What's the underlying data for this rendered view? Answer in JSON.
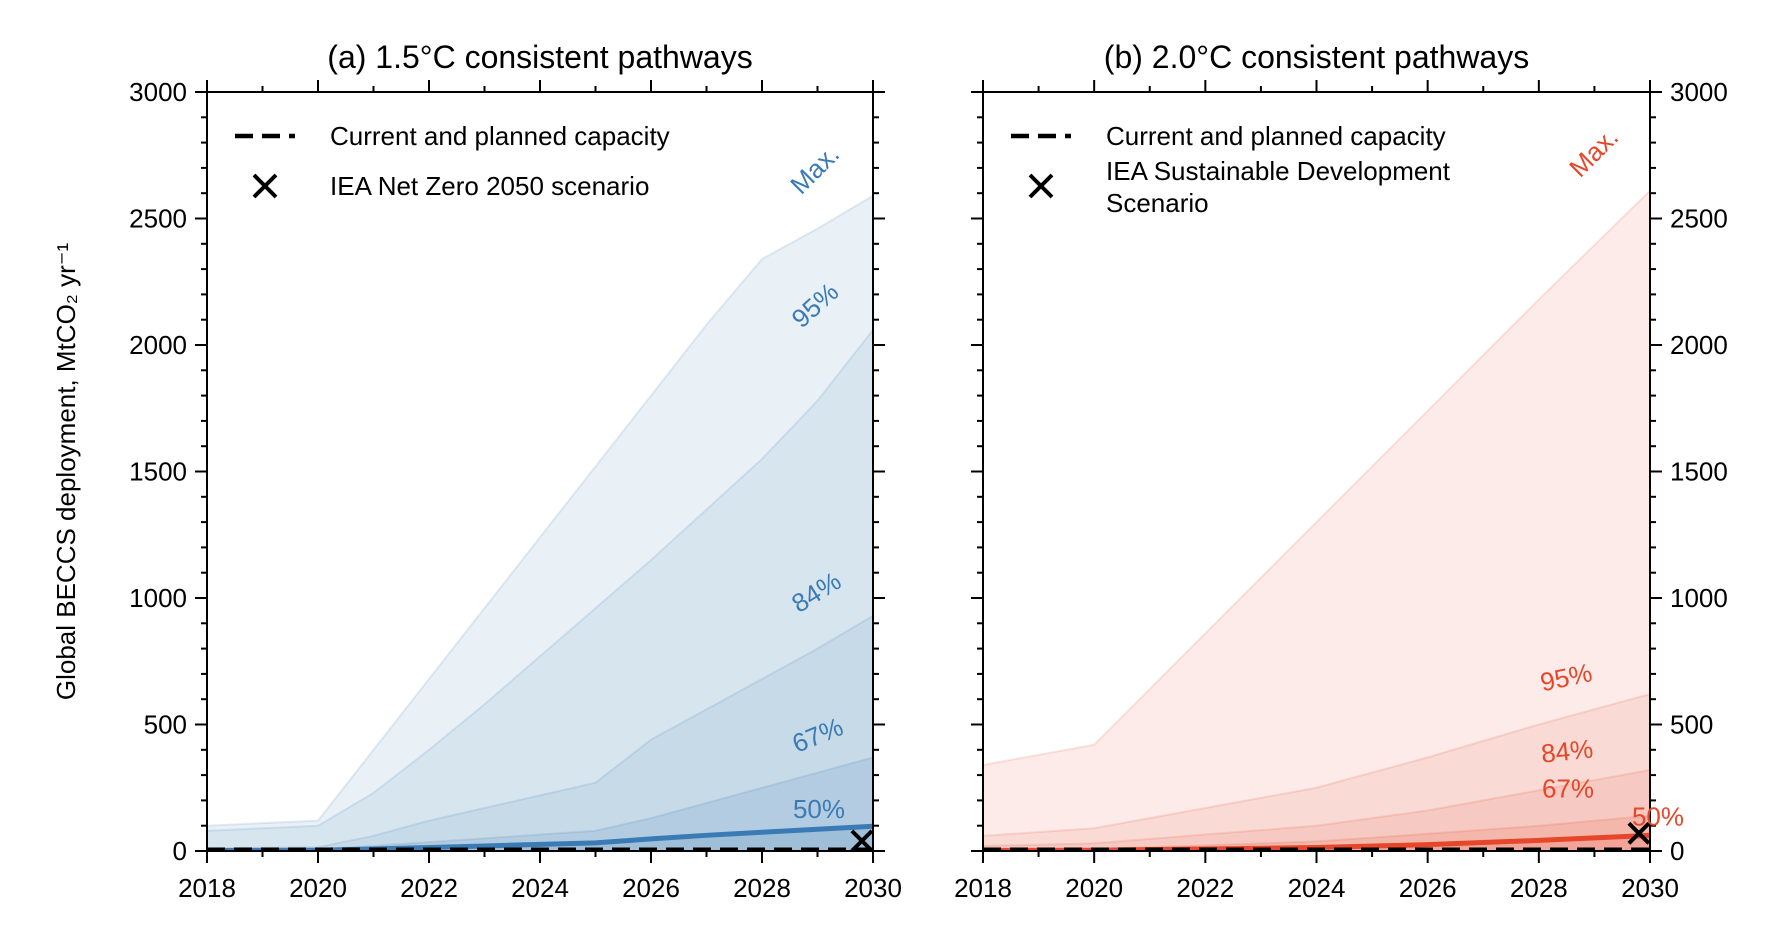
{
  "chart_data": [
    {
      "type": "area",
      "title": "(a) 1.5°C consistent pathways",
      "ylabel": "Global BECCS deployment, MtCO₂ yr⁻¹",
      "xlabel": "",
      "xlim": [
        2018,
        2030
      ],
      "ylim": [
        0,
        3000
      ],
      "xticks": [
        "2018",
        "2020",
        "2022",
        "2024",
        "2026",
        "2028",
        "2030"
      ],
      "yticks": [
        "0",
        "500",
        "1000",
        "1500",
        "2000",
        "2500",
        "3000"
      ],
      "y_axis_side": "left",
      "color": "#3b7bb5",
      "legend": {
        "placement": "upper-left",
        "entries": [
          {
            "label": "Current and planned capacity",
            "marker": "dashed-line"
          },
          {
            "label": "IEA Net Zero 2050 scenario",
            "marker": "x"
          }
        ]
      },
      "series": [
        {
          "name": "Max.",
          "x": [
            2018,
            2020,
            2021,
            2022,
            2023,
            2024,
            2025,
            2026,
            2027,
            2028,
            2029,
            2030
          ],
          "values": [
            100,
            120,
            400,
            680,
            960,
            1240,
            1520,
            1800,
            2080,
            2340,
            2460,
            2590
          ]
        },
        {
          "name": "95%",
          "x": [
            2018,
            2020,
            2021,
            2022,
            2023,
            2024,
            2025,
            2026,
            2027,
            2028,
            2029,
            2030
          ],
          "values": [
            80,
            100,
            230,
            400,
            580,
            770,
            960,
            1150,
            1350,
            1550,
            1780,
            2060
          ]
        },
        {
          "name": "84%",
          "x": [
            2018,
            2020,
            2021,
            2022,
            2023,
            2024,
            2025,
            2026,
            2027,
            2028,
            2029,
            2030
          ],
          "values": [
            10,
            15,
            60,
            120,
            170,
            220,
            270,
            440,
            560,
            680,
            800,
            930
          ]
        },
        {
          "name": "67%",
          "x": [
            2018,
            2020,
            2021,
            2022,
            2023,
            2024,
            2025,
            2026,
            2027,
            2028,
            2029,
            2030
          ],
          "values": [
            5,
            8,
            20,
            35,
            50,
            65,
            80,
            130,
            190,
            250,
            310,
            370
          ]
        },
        {
          "name": "50%",
          "x": [
            2018,
            2020,
            2021,
            2022,
            2023,
            2024,
            2025,
            2026,
            2027,
            2028,
            2029,
            2030
          ],
          "values": [
            2,
            3,
            8,
            14,
            20,
            26,
            32,
            48,
            62,
            74,
            86,
            98
          ]
        }
      ],
      "current_capacity": {
        "x": [
          2018,
          2030
        ],
        "values": [
          5,
          5
        ]
      },
      "scenario_point": {
        "x": 2029.8,
        "y": 40
      }
    },
    {
      "type": "area",
      "title": "(b) 2.0°C consistent pathways",
      "ylabel": "",
      "xlabel": "",
      "xlim": [
        2018,
        2030
      ],
      "ylim": [
        0,
        3000
      ],
      "xticks": [
        "2018",
        "2020",
        "2022",
        "2024",
        "2026",
        "2028",
        "2030"
      ],
      "yticks": [
        "0",
        "500",
        "1000",
        "1500",
        "2000",
        "2500",
        "3000"
      ],
      "y_axis_side": "right",
      "color": "#e6472a",
      "legend": {
        "placement": "upper-left",
        "entries": [
          {
            "label": "Current and planned capacity",
            "marker": "dashed-line"
          },
          {
            "label": "IEA Sustainable Development",
            "label2": "Scenario",
            "marker": "x"
          }
        ]
      },
      "series": [
        {
          "name": "Max.",
          "x": [
            2018,
            2020,
            2022,
            2024,
            2026,
            2028,
            2030
          ],
          "values": [
            340,
            420,
            860,
            1300,
            1740,
            2180,
            2610
          ]
        },
        {
          "name": "95%",
          "x": [
            2018,
            2020,
            2022,
            2024,
            2026,
            2028,
            2030
          ],
          "values": [
            60,
            90,
            170,
            250,
            370,
            500,
            620
          ]
        },
        {
          "name": "84%",
          "x": [
            2018,
            2020,
            2022,
            2024,
            2026,
            2028,
            2030
          ],
          "values": [
            20,
            30,
            65,
            100,
            160,
            240,
            320
          ]
        },
        {
          "name": "67%",
          "x": [
            2018,
            2020,
            2022,
            2024,
            2026,
            2028,
            2030
          ],
          "values": [
            5,
            8,
            22,
            38,
            68,
            100,
            140
          ]
        },
        {
          "name": "50%",
          "x": [
            2018,
            2020,
            2022,
            2024,
            2026,
            2028,
            2030
          ],
          "values": [
            2,
            3,
            8,
            14,
            25,
            42,
            62
          ]
        }
      ],
      "current_capacity": {
        "x": [
          2018,
          2030
        ],
        "values": [
          5,
          5
        ]
      },
      "scenario_point": {
        "x": 2029.8,
        "y": 70
      }
    }
  ]
}
